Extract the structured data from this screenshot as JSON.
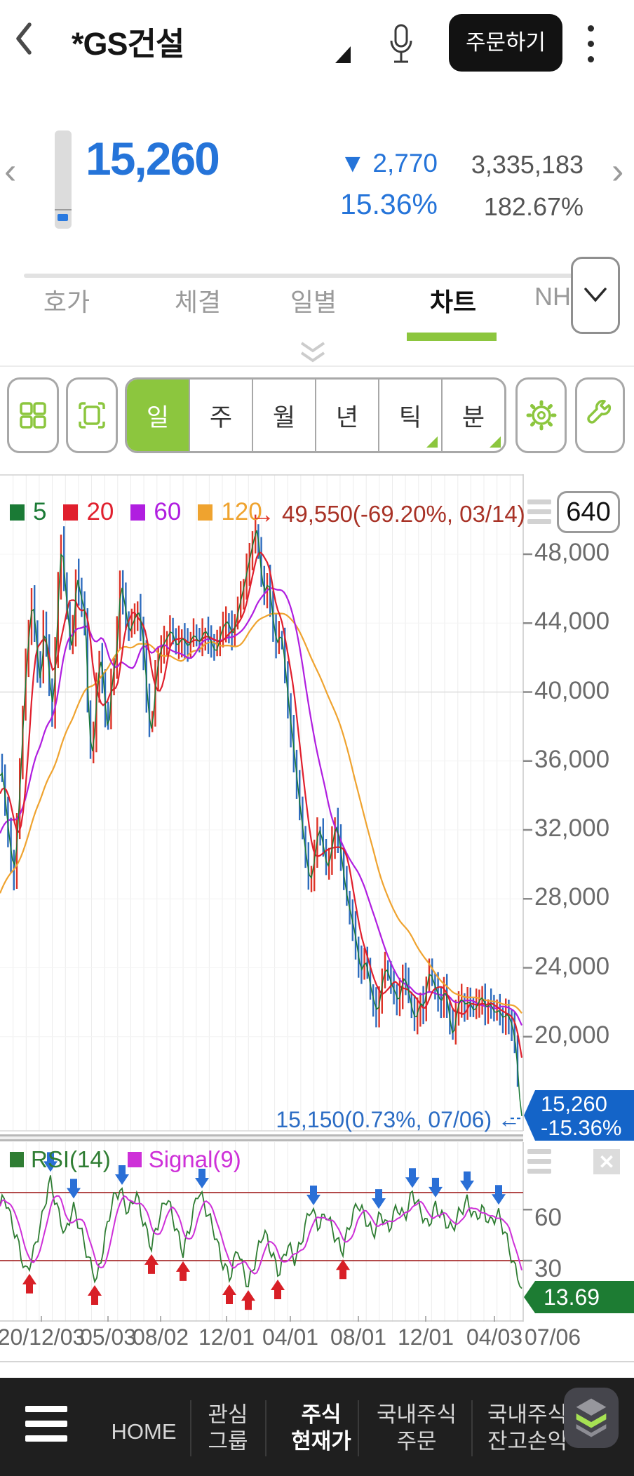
{
  "header": {
    "title": "*GS건설",
    "order_button": "주문하기"
  },
  "price_summary": {
    "current": "15,260",
    "direction": "▼",
    "change": "2,770",
    "change_percent": "15.36%",
    "volume": "3,335,183",
    "turnover_percent": "182.67%"
  },
  "tabs": {
    "items": [
      {
        "label": "호가"
      },
      {
        "label": "체결"
      },
      {
        "label": "일별"
      },
      {
        "label": "차트"
      },
      {
        "label": "NH"
      }
    ],
    "active": "차트"
  },
  "toolbar": {
    "periods": [
      {
        "label": "일"
      },
      {
        "label": "주"
      },
      {
        "label": "월"
      },
      {
        "label": "년"
      },
      {
        "label": "틱",
        "corner": true
      },
      {
        "label": "분",
        "corner": true
      }
    ],
    "active": "일"
  },
  "chart_data": [
    {
      "type": "candlestick",
      "bars_visible": "640",
      "legend": [
        {
          "label": "5",
          "color": "#1a7a35"
        },
        {
          "label": "20",
          "color": "#e01f2d"
        },
        {
          "label": "60",
          "color": "#b01ee0"
        },
        {
          "label": "120",
          "color": "#efa32f"
        }
      ],
      "high_marker": {
        "arrow": "→",
        "text": "49,550(-69.20%, 03/14)",
        "price": 49550,
        "percent": "-69.20%",
        "date": "03/14"
      },
      "low_marker": {
        "text": "15,150(0.73%, 07/06) ←",
        "price": 15150,
        "percent": "0.73%",
        "date": "07/06"
      },
      "price_tag": {
        "value": "15,260",
        "percent": "-15.36%"
      },
      "candle_up_color": "#dd3327",
      "candle_down_color": "#2e6cbe",
      "y_ticks": [
        "48,000",
        "44,000",
        "40,000",
        "36,000",
        "32,000",
        "28,000",
        "24,000",
        "20,000"
      ],
      "y_tick_values": [
        48000,
        44000,
        40000,
        36000,
        32000,
        28000,
        24000,
        20000
      ],
      "ylim": [
        14500,
        52000
      ],
      "x_labels": [
        "20/12/03",
        "05/03",
        "08/02",
        "12/01",
        "04/01",
        "08/01",
        "12/01",
        "04/03",
        "07/06"
      ],
      "x_label_pos": [
        59,
        154,
        229,
        323,
        414,
        511,
        607,
        705,
        788
      ],
      "close_points": [
        [
          2,
          35500
        ],
        [
          8,
          33000
        ],
        [
          14,
          30800
        ],
        [
          20,
          29400
        ],
        [
          26,
          33500
        ],
        [
          32,
          38500
        ],
        [
          38,
          42500
        ],
        [
          45,
          45300
        ],
        [
          50,
          43600
        ],
        [
          56,
          39800
        ],
        [
          62,
          44200
        ],
        [
          68,
          41500
        ],
        [
          74,
          38500
        ],
        [
          80,
          43500
        ],
        [
          86,
          49200
        ],
        [
          91,
          46500
        ],
        [
          96,
          44200
        ],
        [
          102,
          42200
        ],
        [
          108,
          46800
        ],
        [
          114,
          45600
        ],
        [
          120,
          44600
        ],
        [
          126,
          37800
        ],
        [
          131,
          35800
        ],
        [
          137,
          40200
        ],
        [
          143,
          42400
        ],
        [
          149,
          39000
        ],
        [
          153,
          37600
        ],
        [
          159,
          40800
        ],
        [
          165,
          42200
        ],
        [
          171,
          46400
        ],
        [
          177,
          45000
        ],
        [
          183,
          43400
        ],
        [
          190,
          44200
        ],
        [
          197,
          44800
        ],
        [
          203,
          43200
        ],
        [
          209,
          39500
        ],
        [
          215,
          37200
        ],
        [
          221,
          40800
        ],
        [
          227,
          42400
        ],
        [
          235,
          43000
        ],
        [
          243,
          43600
        ],
        [
          251,
          42600
        ],
        [
          259,
          43200
        ],
        [
          267,
          42600
        ],
        [
          275,
          43400
        ],
        [
          283,
          42800
        ],
        [
          291,
          43600
        ],
        [
          299,
          43000
        ],
        [
          307,
          42200
        ],
        [
          315,
          43600
        ],
        [
          323,
          44200
        ],
        [
          331,
          43200
        ],
        [
          339,
          44800
        ],
        [
          347,
          46200
        ],
        [
          355,
          47800
        ],
        [
          362,
          49100
        ],
        [
          366,
          49550
        ],
        [
          370,
          47200
        ],
        [
          376,
          45600
        ],
        [
          382,
          46600
        ],
        [
          388,
          44200
        ],
        [
          394,
          42600
        ],
        [
          400,
          43600
        ],
        [
          406,
          41200
        ],
        [
          412,
          38600
        ],
        [
          418,
          36600
        ],
        [
          424,
          34200
        ],
        [
          430,
          32200
        ],
        [
          436,
          30200
        ],
        [
          442,
          28800
        ],
        [
          448,
          30600
        ],
        [
          454,
          32300
        ],
        [
          460,
          31000
        ],
        [
          466,
          29600
        ],
        [
          472,
          30900
        ],
        [
          478,
          32500
        ],
        [
          484,
          31000
        ],
        [
          490,
          29000
        ],
        [
          496,
          27600
        ],
        [
          502,
          26600
        ],
        [
          508,
          25200
        ],
        [
          514,
          23600
        ],
        [
          520,
          24600
        ],
        [
          526,
          23100
        ],
        [
          532,
          22000
        ],
        [
          538,
          21300
        ],
        [
          544,
          23300
        ],
        [
          550,
          24100
        ],
        [
          556,
          23100
        ],
        [
          562,
          22600
        ],
        [
          568,
          21900
        ],
        [
          574,
          23600
        ],
        [
          580,
          22900
        ],
        [
          586,
          21600
        ],
        [
          592,
          20900
        ],
        [
          598,
          22100
        ],
        [
          604,
          21600
        ],
        [
          610,
          23900
        ],
        [
          616,
          23300
        ],
        [
          622,
          22600
        ],
        [
          628,
          21900
        ],
        [
          634,
          22900
        ],
        [
          640,
          21000
        ],
        [
          645,
          19900
        ],
        [
          650,
          21500
        ],
        [
          656,
          22300
        ],
        [
          662,
          21800
        ],
        [
          668,
          22100
        ],
        [
          674,
          21400
        ],
        [
          680,
          21900
        ],
        [
          686,
          22400
        ],
        [
          692,
          21600
        ],
        [
          698,
          22000
        ],
        [
          704,
          21300
        ],
        [
          710,
          21600
        ],
        [
          716,
          21000
        ],
        [
          722,
          21400
        ],
        [
          728,
          20800
        ],
        [
          733,
          19900
        ],
        [
          737,
          18200
        ],
        [
          740,
          15800
        ],
        [
          742,
          15260
        ]
      ]
    },
    {
      "type": "line",
      "series": [
        {
          "name": "RSI(14)",
          "color": "#2f7d33"
        },
        {
          "name": "Signal(9)",
          "color": "#ce30d8"
        }
      ],
      "overbought_level": 70,
      "oversold_level": 30,
      "level_line_color": "#a83030",
      "y_ticks": [
        "60",
        "30"
      ],
      "y_tick_values": [
        60,
        30
      ],
      "value_tag": {
        "value": "13.69"
      },
      "points": [
        [
          0,
          62
        ],
        [
          7,
          68
        ],
        [
          15,
          55
        ],
        [
          26,
          40
        ],
        [
          37,
          22
        ],
        [
          48,
          35
        ],
        [
          60,
          55
        ],
        [
          71,
          78
        ],
        [
          82,
          60
        ],
        [
          93,
          45
        ],
        [
          104,
          62
        ],
        [
          115,
          48
        ],
        [
          127,
          30
        ],
        [
          138,
          18
        ],
        [
          149,
          42
        ],
        [
          160,
          65
        ],
        [
          171,
          72
        ],
        [
          183,
          58
        ],
        [
          194,
          70
        ],
        [
          205,
          52
        ],
        [
          216,
          38
        ],
        [
          227,
          55
        ],
        [
          238,
          68
        ],
        [
          250,
          50
        ],
        [
          261,
          35
        ],
        [
          272,
          52
        ],
        [
          283,
          72
        ],
        [
          294,
          60
        ],
        [
          305,
          48
        ],
        [
          316,
          30
        ],
        [
          328,
          20
        ],
        [
          339,
          38
        ],
        [
          346,
          25
        ],
        [
          354,
          15
        ],
        [
          365,
          32
        ],
        [
          376,
          48
        ],
        [
          387,
          35
        ],
        [
          398,
          22
        ],
        [
          410,
          40
        ],
        [
          421,
          30
        ],
        [
          432,
          45
        ],
        [
          443,
          62
        ],
        [
          454,
          50
        ],
        [
          465,
          58
        ],
        [
          477,
          45
        ],
        [
          488,
          35
        ],
        [
          499,
          52
        ],
        [
          510,
          64
        ],
        [
          521,
          55
        ],
        [
          532,
          45
        ],
        [
          543,
          58
        ],
        [
          554,
          48
        ],
        [
          566,
          62
        ],
        [
          577,
          55
        ],
        [
          588,
          70
        ],
        [
          599,
          60
        ],
        [
          610,
          50
        ],
        [
          621,
          62
        ],
        [
          632,
          55
        ],
        [
          644,
          48
        ],
        [
          655,
          58
        ],
        [
          666,
          65
        ],
        [
          677,
          55
        ],
        [
          688,
          60
        ],
        [
          699,
          52
        ],
        [
          710,
          58
        ],
        [
          721,
          45
        ],
        [
          732,
          28
        ],
        [
          745,
          13.69
        ]
      ]
    }
  ],
  "bottom_nav": {
    "items": [
      {
        "line1": "HOME"
      },
      {
        "line1": "관심",
        "line2": "그룹"
      },
      {
        "line1": "주식",
        "line2": "현재가",
        "active": true
      },
      {
        "line1": "국내주식",
        "line2": "주문"
      },
      {
        "line1": "국내주식",
        "line2": "잔고손익"
      }
    ]
  }
}
